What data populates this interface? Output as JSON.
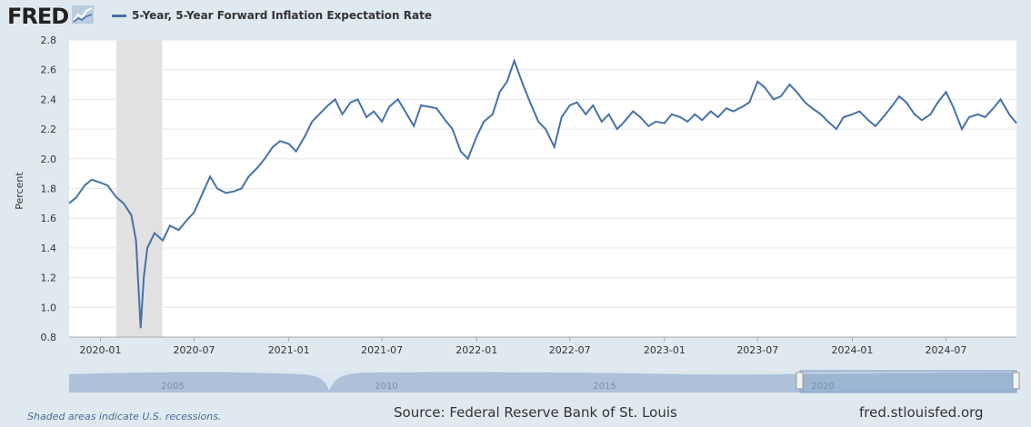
{
  "branding": {
    "logo": "FRED",
    "source_text": "Source: Federal Reserve Bank of St. Louis",
    "url_text": "fred.stlouisfed.org"
  },
  "footer": {
    "recession_note": "Shaded areas indicate U.S. recessions."
  },
  "icons": {
    "logo_chart": "trend-line-icon"
  },
  "colors": {
    "series": "#4572a7",
    "recession": "#e1e1e1",
    "background": "#e1e9f0",
    "plot": "#ffffff",
    "navigator": "#adc2d9"
  },
  "chart_data": {
    "type": "line",
    "title": "",
    "ylabel": "Percent",
    "ylim": [
      0.8,
      2.8
    ],
    "yticks": [
      "0.8",
      "1.0",
      "1.2",
      "1.4",
      "1.6",
      "1.8",
      "2.0",
      "2.2",
      "2.4",
      "2.6",
      "2.8"
    ],
    "xticks": [
      "2020-01",
      "2020-07",
      "2021-01",
      "2021-07",
      "2022-01",
      "2022-07",
      "2023-01",
      "2023-07",
      "2024-01",
      "2024-07"
    ],
    "xrange": [
      "2019-11-01",
      "2024-11-15"
    ],
    "grid": true,
    "legend": "top-left",
    "recessions": [
      {
        "start": "2020-02-01",
        "end": "2020-04-30"
      }
    ],
    "navigator": {
      "labels": [
        "2005",
        "2010",
        "2015",
        "2020"
      ]
    },
    "series": [
      {
        "name": "5-Year, 5-Year Forward Inflation Expectation Rate",
        "x": [
          "2019-11-01",
          "2019-11-15",
          "2019-12-01",
          "2019-12-15",
          "2020-01-01",
          "2020-01-15",
          "2020-02-01",
          "2020-02-15",
          "2020-03-01",
          "2020-03-10",
          "2020-03-19",
          "2020-03-25",
          "2020-04-01",
          "2020-04-15",
          "2020-05-01",
          "2020-05-15",
          "2020-06-01",
          "2020-06-15",
          "2020-07-01",
          "2020-07-15",
          "2020-08-01",
          "2020-08-15",
          "2020-09-01",
          "2020-09-15",
          "2020-10-01",
          "2020-10-15",
          "2020-11-01",
          "2020-11-15",
          "2020-12-01",
          "2020-12-15",
          "2021-01-01",
          "2021-01-15",
          "2021-02-01",
          "2021-02-15",
          "2021-03-01",
          "2021-03-15",
          "2021-04-01",
          "2021-04-15",
          "2021-05-01",
          "2021-05-15",
          "2021-06-01",
          "2021-06-15",
          "2021-07-01",
          "2021-07-15",
          "2021-08-01",
          "2021-08-15",
          "2021-09-01",
          "2021-09-15",
          "2021-10-01",
          "2021-10-15",
          "2021-11-01",
          "2021-11-15",
          "2021-12-01",
          "2021-12-15",
          "2022-01-01",
          "2022-01-15",
          "2022-02-01",
          "2022-02-15",
          "2022-03-01",
          "2022-03-15",
          "2022-04-01",
          "2022-04-15",
          "2022-05-01",
          "2022-05-15",
          "2022-06-01",
          "2022-06-15",
          "2022-07-01",
          "2022-07-15",
          "2022-08-01",
          "2022-08-15",
          "2022-09-01",
          "2022-09-15",
          "2022-10-01",
          "2022-10-15",
          "2022-11-01",
          "2022-11-15",
          "2022-12-01",
          "2022-12-15",
          "2023-01-01",
          "2023-01-15",
          "2023-02-01",
          "2023-02-15",
          "2023-03-01",
          "2023-03-15",
          "2023-04-01",
          "2023-04-15",
          "2023-05-01",
          "2023-05-15",
          "2023-06-01",
          "2023-06-15",
          "2023-07-01",
          "2023-07-15",
          "2023-08-01",
          "2023-08-15",
          "2023-09-01",
          "2023-09-15",
          "2023-10-01",
          "2023-10-15",
          "2023-11-01",
          "2023-11-15",
          "2023-12-01",
          "2023-12-15",
          "2024-01-01",
          "2024-01-15",
          "2024-02-01",
          "2024-02-15",
          "2024-03-01",
          "2024-03-15",
          "2024-04-01",
          "2024-04-15",
          "2024-05-01",
          "2024-05-15",
          "2024-06-01",
          "2024-06-15",
          "2024-07-01",
          "2024-07-15",
          "2024-08-01",
          "2024-08-15",
          "2024-09-01",
          "2024-09-15",
          "2024-10-01",
          "2024-10-15",
          "2024-11-01",
          "2024-11-15"
        ],
        "y": [
          1.7,
          1.74,
          1.82,
          1.86,
          1.84,
          1.82,
          1.74,
          1.7,
          1.62,
          1.45,
          0.86,
          1.2,
          1.4,
          1.5,
          1.45,
          1.55,
          1.52,
          1.58,
          1.64,
          1.75,
          1.88,
          1.8,
          1.77,
          1.78,
          1.8,
          1.88,
          1.94,
          2.0,
          2.08,
          2.12,
          2.1,
          2.05,
          2.15,
          2.25,
          2.3,
          2.35,
          2.4,
          2.3,
          2.38,
          2.4,
          2.28,
          2.32,
          2.25,
          2.35,
          2.4,
          2.32,
          2.22,
          2.36,
          2.35,
          2.34,
          2.26,
          2.2,
          2.05,
          2.0,
          2.15,
          2.25,
          2.3,
          2.45,
          2.52,
          2.66,
          2.5,
          2.38,
          2.25,
          2.2,
          2.08,
          2.28,
          2.36,
          2.38,
          2.3,
          2.36,
          2.25,
          2.3,
          2.2,
          2.25,
          2.32,
          2.28,
          2.22,
          2.25,
          2.24,
          2.3,
          2.28,
          2.25,
          2.3,
          2.26,
          2.32,
          2.28,
          2.34,
          2.32,
          2.35,
          2.38,
          2.52,
          2.48,
          2.4,
          2.42,
          2.5,
          2.45,
          2.38,
          2.34,
          2.3,
          2.25,
          2.2,
          2.28,
          2.3,
          2.32,
          2.26,
          2.22,
          2.28,
          2.34,
          2.42,
          2.38,
          2.3,
          2.26,
          2.3,
          2.38,
          2.45,
          2.35,
          2.2,
          2.28,
          2.3,
          2.28,
          2.34,
          2.4,
          2.3,
          2.24
        ]
      }
    ]
  }
}
